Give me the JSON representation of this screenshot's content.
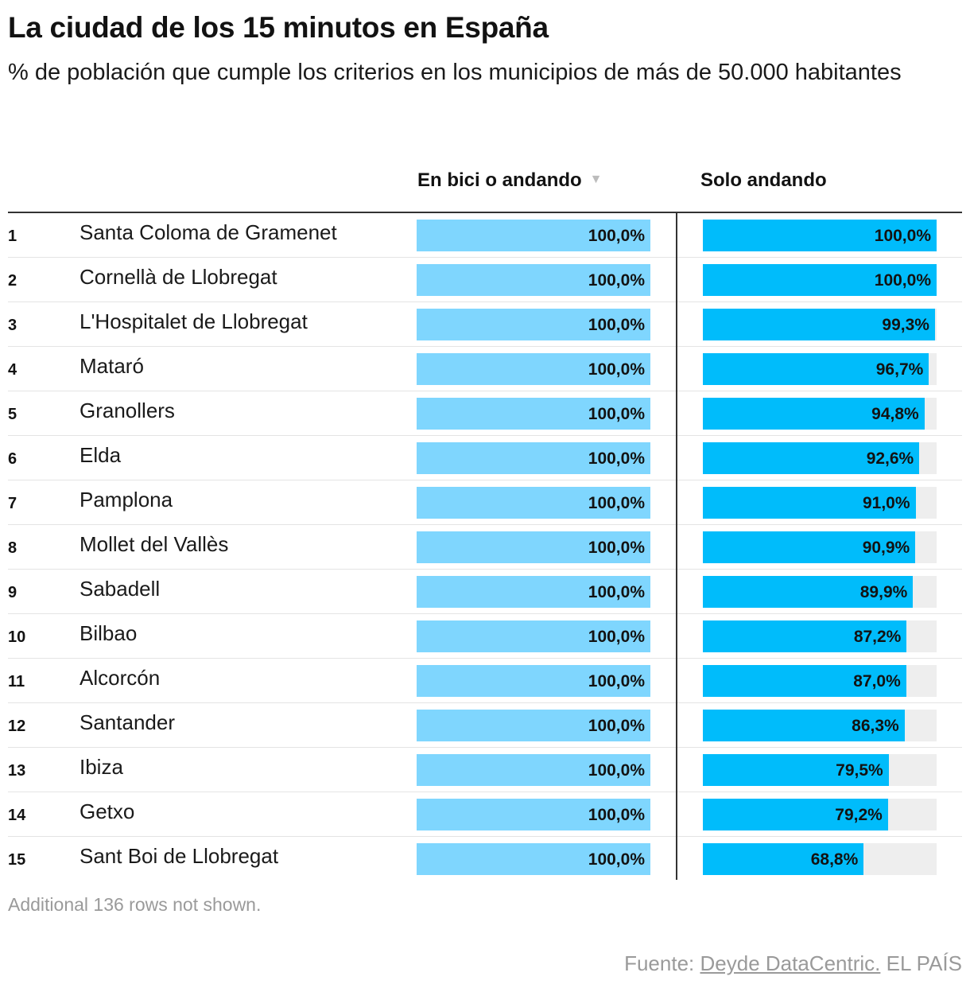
{
  "title": "La ciudad de los 15 minutos en España",
  "subtitle": "% de población que cumple los criterios en los municipios de más de 50.000 habitantes",
  "columns": {
    "col1_label": "En bici o andando",
    "sort_icon": "sort-down-icon",
    "col2_label": "Solo andando"
  },
  "colors": {
    "bike": "#7fd6fe",
    "walk": "#00bcfb",
    "track": "#eeeeee"
  },
  "chart_data": {
    "type": "table",
    "value_range": [
      0,
      100
    ],
    "rows": [
      {
        "rank": "1",
        "municipio": "Santa Coloma de Gramenet",
        "bici_andando": 100.0,
        "bici_label": "100,0%",
        "solo_andando": 100.0,
        "solo_label": "100,0%"
      },
      {
        "rank": "2",
        "municipio": "Cornellà de Llobregat",
        "bici_andando": 100.0,
        "bici_label": "100,0%",
        "solo_andando": 100.0,
        "solo_label": "100,0%"
      },
      {
        "rank": "3",
        "municipio": "L'Hospitalet de Llobregat",
        "bici_andando": 100.0,
        "bici_label": "100,0%",
        "solo_andando": 99.3,
        "solo_label": "99,3%"
      },
      {
        "rank": "4",
        "municipio": "Mataró",
        "bici_andando": 100.0,
        "bici_label": "100,0%",
        "solo_andando": 96.7,
        "solo_label": "96,7%"
      },
      {
        "rank": "5",
        "municipio": "Granollers",
        "bici_andando": 100.0,
        "bici_label": "100,0%",
        "solo_andando": 94.8,
        "solo_label": "94,8%"
      },
      {
        "rank": "6",
        "municipio": "Elda",
        "bici_andando": 100.0,
        "bici_label": "100,0%",
        "solo_andando": 92.6,
        "solo_label": "92,6%"
      },
      {
        "rank": "7",
        "municipio": "Pamplona",
        "bici_andando": 100.0,
        "bici_label": "100,0%",
        "solo_andando": 91.0,
        "solo_label": "91,0%"
      },
      {
        "rank": "8",
        "municipio": "Mollet del Vallès",
        "bici_andando": 100.0,
        "bici_label": "100,0%",
        "solo_andando": 90.9,
        "solo_label": "90,9%"
      },
      {
        "rank": "9",
        "municipio": "Sabadell",
        "bici_andando": 100.0,
        "bici_label": "100,0%",
        "solo_andando": 89.9,
        "solo_label": "89,9%"
      },
      {
        "rank": "10",
        "municipio": "Bilbao",
        "bici_andando": 100.0,
        "bici_label": "100,0%",
        "solo_andando": 87.2,
        "solo_label": "87,2%"
      },
      {
        "rank": "11",
        "municipio": "Alcorcón",
        "bici_andando": 100.0,
        "bici_label": "100,0%",
        "solo_andando": 87.0,
        "solo_label": "87,0%"
      },
      {
        "rank": "12",
        "municipio": "Santander",
        "bici_andando": 100.0,
        "bici_label": "100,0%",
        "solo_andando": 86.3,
        "solo_label": "86,3%"
      },
      {
        "rank": "13",
        "municipio": "Ibiza",
        "bici_andando": 100.0,
        "bici_label": "100,0%",
        "solo_andando": 79.5,
        "solo_label": "79,5%"
      },
      {
        "rank": "14",
        "municipio": "Getxo",
        "bici_andando": 100.0,
        "bici_label": "100,0%",
        "solo_andando": 79.2,
        "solo_label": "79,2%"
      },
      {
        "rank": "15",
        "municipio": "Sant Boi de Llobregat",
        "bici_andando": 100.0,
        "bici_label": "100,0%",
        "solo_andando": 68.8,
        "solo_label": "68,8%"
      }
    ]
  },
  "note": "Additional 136 rows not shown.",
  "source": {
    "prefix": "Fuente: ",
    "link": "Deyde DataCentric.",
    "suffix": " EL PAÍS"
  }
}
